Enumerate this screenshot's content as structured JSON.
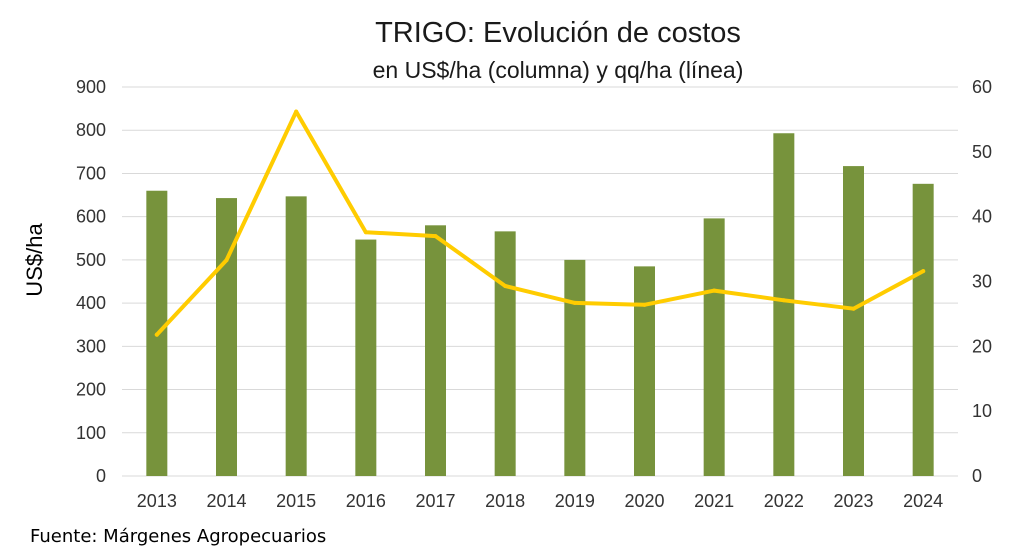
{
  "chart_data": {
    "type": "bar+line",
    "title": "TRIGO: Evolución de costos",
    "subtitle": "en US$/ha (columna) y qq/ha (línea)",
    "ylabel": "US$/ha",
    "y2label": "",
    "categories": [
      "2013",
      "2014",
      "2015",
      "2016",
      "2017",
      "2018",
      "2019",
      "2020",
      "2021",
      "2022",
      "2023",
      "2024"
    ],
    "series": [
      {
        "type": "bar",
        "axis": "left",
        "color": "#77933c",
        "values": [
          660,
          643,
          647,
          547,
          580,
          566,
          500,
          485,
          596,
          793,
          717,
          676
        ]
      },
      {
        "type": "line",
        "axis": "right",
        "color": "#ffcc00",
        "values": [
          21.8,
          33.3,
          56.2,
          37.6,
          37.0,
          29.3,
          26.7,
          26.4,
          28.6,
          27.1,
          25.8,
          31.6
        ]
      }
    ],
    "ylim": [
      0,
      900
    ],
    "yticks": [
      0,
      100,
      200,
      300,
      400,
      500,
      600,
      700,
      800,
      900
    ],
    "y2lim": [
      0,
      60
    ],
    "y2ticks": [
      0,
      10,
      20,
      30,
      40,
      50,
      60
    ],
    "grid": true,
    "legend": "none"
  },
  "source_note": "Fuente: Márgenes Agropecuarios"
}
